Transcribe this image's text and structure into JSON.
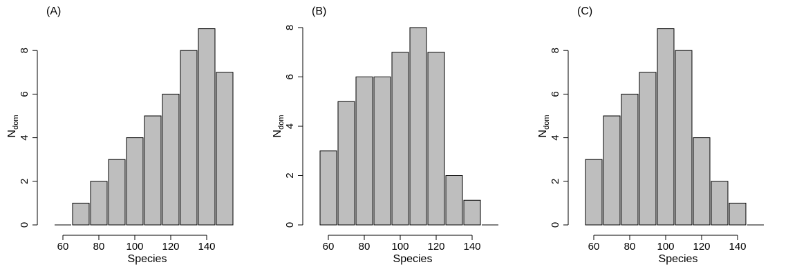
{
  "chart_data": [
    {
      "type": "bar",
      "panel_label": "(A)",
      "xlabel": "Species",
      "ylabel_main": "N",
      "ylabel_sub": "dom",
      "x": [
        60,
        70,
        80,
        90,
        100,
        110,
        120,
        130,
        140,
        150
      ],
      "values": [
        0,
        1,
        2,
        3,
        4,
        5,
        6,
        8,
        9,
        7
      ],
      "xticks": [
        60,
        80,
        100,
        120,
        140
      ],
      "yticks": [
        0,
        2,
        4,
        6,
        8
      ],
      "ylim": [
        0,
        9
      ],
      "bar_color": "#bebebe"
    },
    {
      "type": "bar",
      "panel_label": "(B)",
      "xlabel": "Species",
      "ylabel_main": "N",
      "ylabel_sub": "dom",
      "x": [
        60,
        70,
        80,
        90,
        100,
        110,
        120,
        130,
        140,
        150
      ],
      "values": [
        3,
        5,
        6,
        6,
        7,
        8,
        7,
        2,
        1,
        0
      ],
      "xticks": [
        60,
        80,
        100,
        120,
        140
      ],
      "yticks": [
        0,
        2,
        4,
        6,
        8
      ],
      "ylim": [
        0,
        8
      ],
      "bar_color": "#bebebe"
    },
    {
      "type": "bar",
      "panel_label": "(C)",
      "xlabel": "Species",
      "ylabel_main": "N",
      "ylabel_sub": "dom",
      "x": [
        60,
        70,
        80,
        90,
        100,
        110,
        120,
        130,
        140,
        150
      ],
      "values": [
        3,
        5,
        6,
        7,
        9,
        8,
        4,
        2,
        1,
        0
      ],
      "xticks": [
        60,
        80,
        100,
        120,
        140
      ],
      "yticks": [
        0,
        2,
        4,
        6,
        8
      ],
      "ylim": [
        0,
        9
      ],
      "bar_color": "#bebebe"
    }
  ]
}
